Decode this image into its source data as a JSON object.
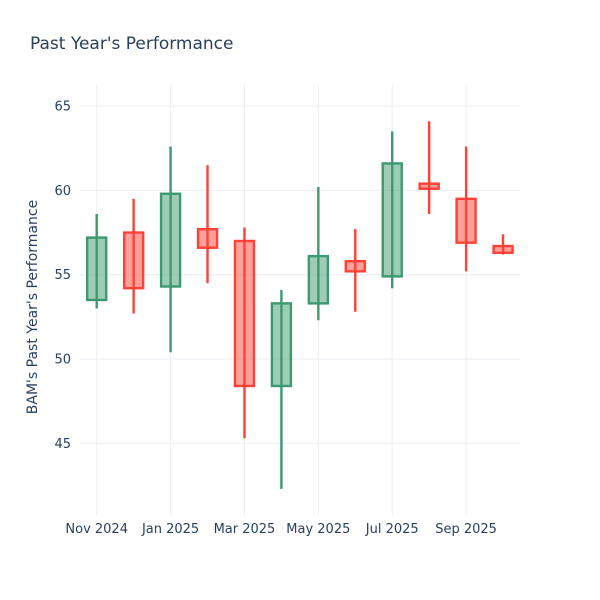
{
  "header": {
    "title": "Past Year's Performance"
  },
  "chart_data": {
    "type": "candlestick",
    "title": "Past Year's Performance",
    "xlabel": "",
    "ylabel": "BAM's Past Year's Performance",
    "x": [
      "Nov 2024",
      "Dec 2024",
      "Jan 2025",
      "Feb 2025",
      "Mar 2025",
      "Apr 2025",
      "May 2025",
      "Jun 2025",
      "Jul 2025",
      "Aug 2025",
      "Sep 2025",
      "Oct 2025"
    ],
    "x_tick_labels": [
      "Nov 2024",
      "Jan 2025",
      "Mar 2025",
      "May 2025",
      "Jul 2025",
      "Sep 2025"
    ],
    "open": [
      53.5,
      57.5,
      54.3,
      57.7,
      57.0,
      48.4,
      53.3,
      55.8,
      54.9,
      60.4,
      59.5,
      56.7
    ],
    "high": [
      58.6,
      59.5,
      62.6,
      61.5,
      57.8,
      54.1,
      60.2,
      57.7,
      63.5,
      64.1,
      62.6,
      57.4
    ],
    "low": [
      53.0,
      52.7,
      50.4,
      54.5,
      45.3,
      42.3,
      52.3,
      52.8,
      54.2,
      58.6,
      55.2,
      56.2
    ],
    "close": [
      57.2,
      54.2,
      59.8,
      56.6,
      48.4,
      53.3,
      56.1,
      55.2,
      61.6,
      60.1,
      56.9,
      56.3
    ],
    "y_ticks": [
      45,
      50,
      55,
      60,
      65
    ],
    "ylim": [
      40.75,
      66.25
    ],
    "grid": true,
    "legend": false,
    "colors": {
      "increasing_line": "#3D9970",
      "increasing_fill": "rgba(61,153,112,0.5)",
      "decreasing_line": "#FF4136",
      "decreasing_fill": "rgba(255,65,54,0.5)",
      "grid": "#EBEEF5",
      "text": "#2A3F5F",
      "background": "#FFFFFF"
    }
  }
}
